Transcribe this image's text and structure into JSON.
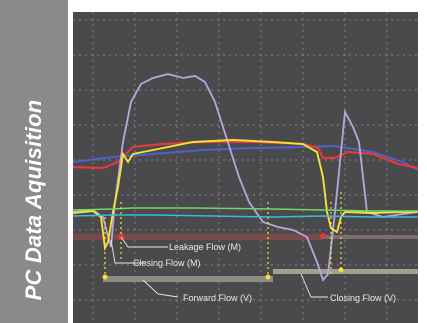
{
  "sidebar": {
    "title": "PC Data Aquisition"
  },
  "labels": {
    "leakage_flow": "Leakage Flow (M)",
    "closing_flow_m": "Closing Flow (M)",
    "forward_flow": "Forward Flow (V)",
    "closing_flow_v": "Closing Flow (V)"
  },
  "colors": {
    "sidebar": "#8a8a8a",
    "scope_bg": "#4a4a4c",
    "grid": "#d8d8d8",
    "lavender": "#b9a6de",
    "yellow": "#f3e23a",
    "red": "#e23a3a",
    "blue": "#4d62c9",
    "cyan": "#3bb9de",
    "green": "#7ad36a",
    "dark_red": "#7a4a4a",
    "gray_bar": "#8c8c84"
  }
}
